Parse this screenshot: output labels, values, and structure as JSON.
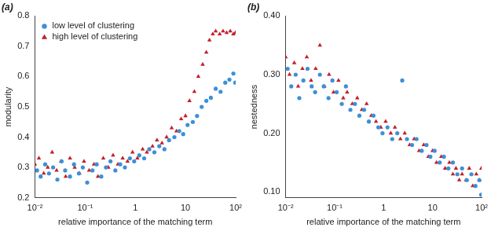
{
  "chart_data": [
    {
      "type": "scatter",
      "title": "(a)",
      "x_label": "relative importance of the matching term",
      "y_label": "modularity",
      "log": "x",
      "grid": false,
      "legend": "top-left",
      "xlim": [
        0.01,
        100
      ],
      "xticks": [
        {
          "value": 0.01,
          "label": "10⁻²"
        },
        {
          "value": 0.1,
          "label": "10⁻¹"
        },
        1,
        10,
        {
          "value": 100,
          "label": "10²"
        }
      ],
      "ylim": [
        0.2,
        0.8
      ],
      "yticks": [
        0.2,
        0.3,
        0.4,
        0.5,
        0.6,
        0.7,
        0.8
      ],
      "series": [
        {
          "name": "low level of clustering",
          "color": "#3d8fd6",
          "marker": "circle",
          "x": [
            0.011,
            0.013,
            0.016,
            0.019,
            0.023,
            0.028,
            0.034,
            0.04,
            0.05,
            0.06,
            0.075,
            0.09,
            0.11,
            0.14,
            0.17,
            0.21,
            0.26,
            0.32,
            0.4,
            0.5,
            0.62,
            0.78,
            0.95,
            1.2,
            1.5,
            1.9,
            2.4,
            3.0,
            3.8,
            4.7,
            6,
            7.5,
            9,
            11,
            14,
            17,
            21,
            26,
            32,
            40,
            50,
            62,
            75,
            90,
            98
          ],
          "values": [
            0.29,
            0.27,
            0.31,
            0.28,
            0.3,
            0.26,
            0.32,
            0.29,
            0.27,
            0.31,
            0.28,
            0.3,
            0.25,
            0.29,
            0.31,
            0.27,
            0.3,
            0.32,
            0.29,
            0.31,
            0.3,
            0.33,
            0.32,
            0.34,
            0.33,
            0.36,
            0.35,
            0.37,
            0.36,
            0.39,
            0.4,
            0.42,
            0.41,
            0.44,
            0.45,
            0.47,
            0.5,
            0.52,
            0.53,
            0.56,
            0.55,
            0.58,
            0.59,
            0.61,
            0.58
          ]
        },
        {
          "name": "high level of clustering",
          "color": "#c3202b",
          "marker": "triangle",
          "x": [
            0.01,
            0.012,
            0.015,
            0.018,
            0.022,
            0.027,
            0.033,
            0.041,
            0.05,
            0.062,
            0.077,
            0.095,
            0.12,
            0.15,
            0.18,
            0.23,
            0.29,
            0.36,
            0.45,
            0.56,
            0.7,
            0.88,
            1.1,
            1.4,
            1.7,
            2.2,
            2.7,
            3.4,
            4.2,
            5.3,
            6.6,
            8.2,
            10,
            12,
            15,
            18,
            22,
            26,
            30,
            35,
            40,
            48,
            56,
            66,
            78,
            90,
            99
          ],
          "values": [
            0.31,
            0.33,
            0.28,
            0.3,
            0.35,
            0.29,
            0.32,
            0.27,
            0.33,
            0.3,
            0.28,
            0.32,
            0.29,
            0.31,
            0.27,
            0.33,
            0.3,
            0.34,
            0.31,
            0.33,
            0.32,
            0.35,
            0.33,
            0.36,
            0.35,
            0.37,
            0.39,
            0.38,
            0.4,
            0.43,
            0.42,
            0.46,
            0.47,
            0.52,
            0.55,
            0.6,
            0.64,
            0.68,
            0.72,
            0.74,
            0.75,
            0.74,
            0.75,
            0.745,
            0.75,
            0.74,
            0.745
          ]
        }
      ]
    },
    {
      "type": "scatter",
      "title": "(b)",
      "x_label": "relative importance of the matching term",
      "y_label": "nestedness",
      "log": "x",
      "grid": false,
      "xlim": [
        0.01,
        100
      ],
      "xticks": [
        {
          "value": 0.01,
          "label": "10⁻²"
        },
        {
          "value": 0.1,
          "label": "10⁻¹"
        },
        1,
        10,
        {
          "value": 100,
          "label": "10²"
        }
      ],
      "ylim": [
        0.09,
        0.4
      ],
      "yticks": [
        {
          "value": 0.1,
          "label": "0.10"
        },
        {
          "value": 0.2,
          "label": "0.20"
        },
        {
          "value": 0.3,
          "label": "0.30"
        },
        {
          "value": 0.4,
          "label": "0.40"
        }
      ],
      "series": [
        {
          "name": "low level of clustering",
          "color": "#3d8fd6",
          "marker": "circle",
          "x": [
            0.011,
            0.013,
            0.016,
            0.019,
            0.023,
            0.028,
            0.034,
            0.04,
            0.05,
            0.06,
            0.075,
            0.09,
            0.11,
            0.14,
            0.17,
            0.21,
            0.26,
            0.32,
            0.4,
            0.5,
            0.62,
            0.78,
            0.95,
            1.2,
            1.5,
            1.9,
            2.4,
            3.0,
            3.8,
            4.7,
            6,
            7.5,
            9,
            11,
            14,
            17,
            21,
            26,
            32,
            40,
            50,
            62,
            75,
            90,
            98
          ],
          "values": [
            0.31,
            0.28,
            0.3,
            0.26,
            0.29,
            0.31,
            0.28,
            0.27,
            0.3,
            0.28,
            0.26,
            0.29,
            0.27,
            0.25,
            0.28,
            0.24,
            0.25,
            0.23,
            0.24,
            0.22,
            0.23,
            0.21,
            0.2,
            0.21,
            0.19,
            0.2,
            0.29,
            0.19,
            0.18,
            0.19,
            0.17,
            0.18,
            0.16,
            0.17,
            0.15,
            0.16,
            0.14,
            0.15,
            0.13,
            0.14,
            0.12,
            0.13,
            0.11,
            0.12,
            0.095
          ]
        },
        {
          "name": "high level of clustering",
          "color": "#c3202b",
          "marker": "triangle",
          "x": [
            0.01,
            0.012,
            0.015,
            0.018,
            0.022,
            0.027,
            0.033,
            0.041,
            0.05,
            0.062,
            0.077,
            0.095,
            0.12,
            0.15,
            0.18,
            0.23,
            0.29,
            0.36,
            0.45,
            0.56,
            0.7,
            0.88,
            1.1,
            1.4,
            1.7,
            2.2,
            2.7,
            3.4,
            4.2,
            5.3,
            6.6,
            8.2,
            10,
            12,
            15,
            18,
            22,
            26,
            30,
            35,
            40,
            48,
            56,
            66,
            78,
            90,
            99
          ],
          "values": [
            0.33,
            0.3,
            0.32,
            0.28,
            0.31,
            0.33,
            0.29,
            0.31,
            0.35,
            0.28,
            0.3,
            0.27,
            0.29,
            0.26,
            0.27,
            0.25,
            0.26,
            0.24,
            0.25,
            0.23,
            0.22,
            0.21,
            0.22,
            0.2,
            0.21,
            0.19,
            0.2,
            0.18,
            0.19,
            0.17,
            0.18,
            0.16,
            0.17,
            0.15,
            0.16,
            0.14,
            0.15,
            0.13,
            0.14,
            0.12,
            0.13,
            0.12,
            0.14,
            0.11,
            0.13,
            0.12,
            0.14
          ]
        }
      ]
    }
  ]
}
